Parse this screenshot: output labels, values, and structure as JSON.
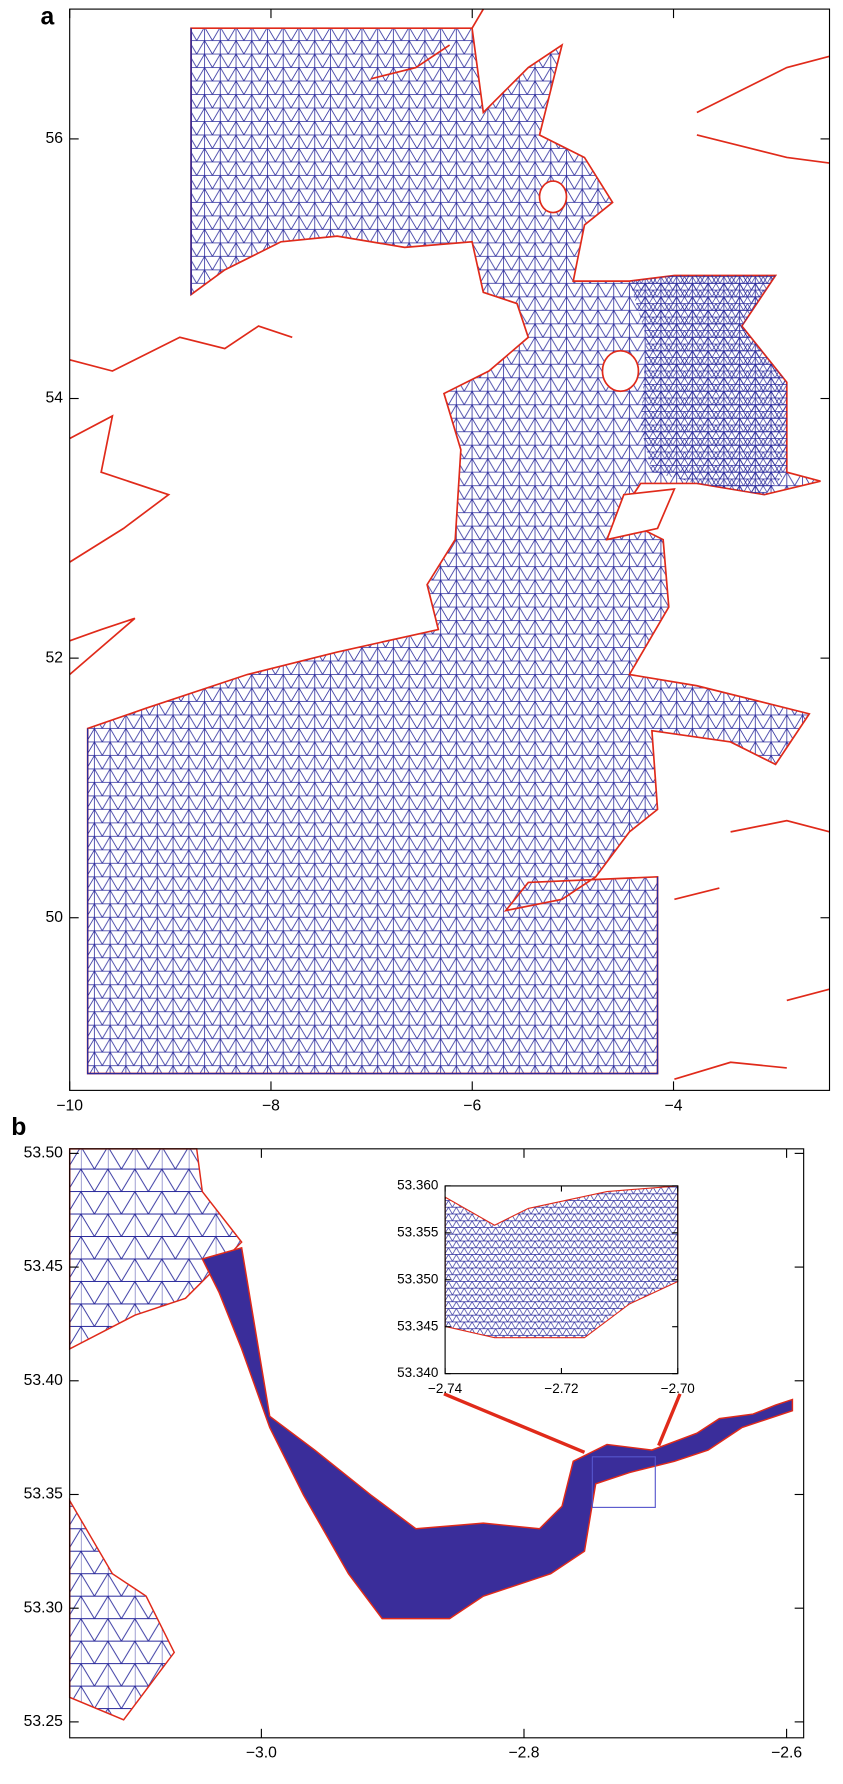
{
  "figure": {
    "panels": [
      {
        "label": "a",
        "xlim": [
          -10,
          -2.45
        ],
        "ylim": [
          48.67,
          57.0
        ],
        "xticks": [
          {
            "value": -10,
            "label": "−10"
          },
          {
            "value": -8,
            "label": "−8"
          },
          {
            "value": -6,
            "label": "−6"
          },
          {
            "value": -4,
            "label": "−4"
          }
        ],
        "yticks": [
          50,
          52,
          54,
          56
        ]
      },
      {
        "label": "b",
        "xlim": [
          -3.146,
          -2.587
        ],
        "ylim": [
          53.243,
          53.502
        ],
        "xticks": [
          {
            "value": -3.0,
            "label": "−3.0"
          },
          {
            "value": -2.8,
            "label": "−2.8"
          },
          {
            "value": -2.6,
            "label": "−2.6"
          }
        ],
        "yticks": [
          {
            "value": 53.25,
            "label": "53.25"
          },
          {
            "value": 53.3,
            "label": "53.30"
          },
          {
            "value": 53.35,
            "label": "53.35"
          },
          {
            "value": 53.4,
            "label": "53.40"
          },
          {
            "value": 53.45,
            "label": "53.45"
          },
          {
            "value": 53.5,
            "label": "53.50"
          }
        ],
        "inset": {
          "xlim": [
            -2.74,
            -2.7
          ],
          "ylim": [
            53.34,
            53.36
          ],
          "xticks": [
            {
              "value": -2.74,
              "label": "−2.74"
            },
            {
              "value": -2.72,
              "label": "−2.72"
            },
            {
              "value": -2.7,
              "label": "−2.70"
            }
          ],
          "yticks": [
            {
              "value": 53.34,
              "label": "53.340"
            },
            {
              "value": 53.345,
              "label": "53.345"
            },
            {
              "value": 53.35,
              "label": "53.350"
            },
            {
              "value": 53.355,
              "label": "53.355"
            },
            {
              "value": 53.36,
              "label": "53.360"
            }
          ]
        }
      }
    ]
  }
}
